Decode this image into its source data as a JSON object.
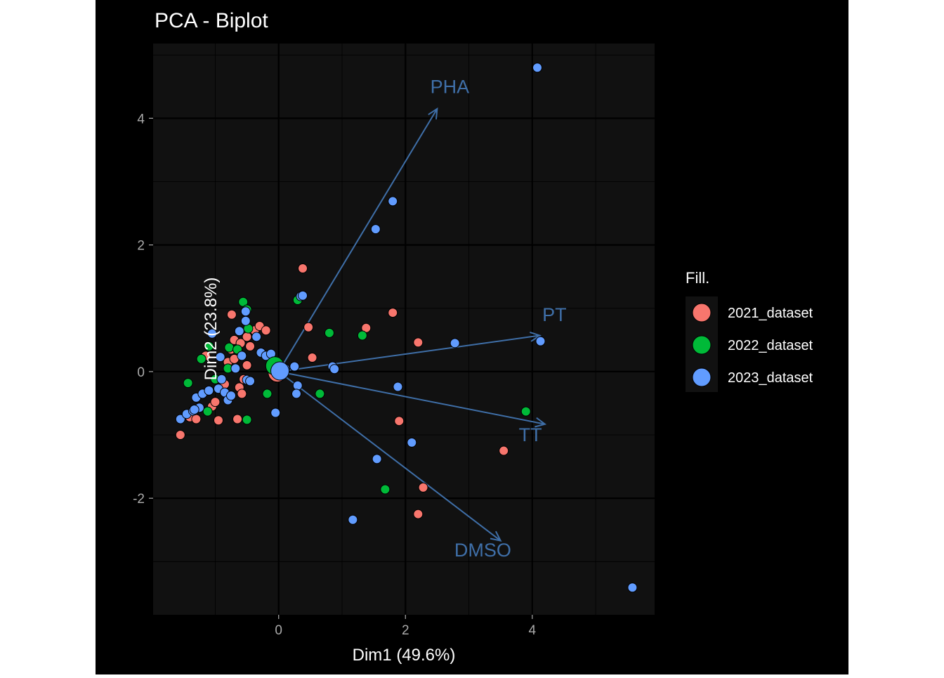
{
  "chart_data": {
    "type": "scatter",
    "title": "PCA - Biplot",
    "xlabel": "Dim1 (49.6%)",
    "ylabel": "Dim2 (23.8%)",
    "xlim": [
      -1.98,
      5.93
    ],
    "ylim": [
      -3.84,
      5.18
    ],
    "x_ticks": [
      0,
      2,
      4
    ],
    "x_tick_labels": [
      "0",
      "2",
      "4"
    ],
    "y_ticks": [
      -2,
      0,
      2,
      4
    ],
    "y_tick_labels": [
      "-2",
      "0",
      "2",
      "4"
    ],
    "grid": true,
    "legend": {
      "title": "Fill.",
      "position": "right"
    },
    "series": [
      {
        "name": "2021_dataset",
        "color": "#F8766D",
        "points": [
          [
            -1.55,
            -1.0
          ],
          [
            -1.4,
            -0.72
          ],
          [
            -1.3,
            -0.75
          ],
          [
            -1.05,
            -0.55
          ],
          [
            -1.0,
            -0.48
          ],
          [
            -0.95,
            -0.77
          ],
          [
            -0.85,
            -0.2
          ],
          [
            -0.8,
            0.15
          ],
          [
            -0.75,
            0.35
          ],
          [
            -0.7,
            0.5
          ],
          [
            -0.62,
            -0.25
          ],
          [
            -0.58,
            -0.35
          ],
          [
            -0.55,
            -0.12
          ],
          [
            -0.7,
            0.2
          ],
          [
            -0.74,
            0.9
          ],
          [
            -0.6,
            0.45
          ],
          [
            -0.5,
            0.55
          ],
          [
            -0.45,
            0.4
          ],
          [
            -0.38,
            0.65
          ],
          [
            -0.3,
            0.72
          ],
          [
            -0.2,
            0.65
          ],
          [
            -0.1,
            0.15
          ],
          [
            -0.05,
            -0.1
          ],
          [
            -0.65,
            -0.75
          ],
          [
            -0.5,
            0.1
          ],
          [
            0.38,
            1.63
          ],
          [
            0.47,
            0.7
          ],
          [
            0.53,
            0.22
          ],
          [
            1.38,
            0.69
          ],
          [
            1.8,
            0.93
          ],
          [
            2.2,
            0.46
          ],
          [
            1.9,
            -0.78
          ],
          [
            2.28,
            -1.83
          ],
          [
            2.2,
            -2.25
          ],
          [
            3.55,
            -1.25
          ],
          [
            -1.15,
            0.25
          ]
        ]
      },
      {
        "name": "2022_dataset",
        "color": "#00BA38",
        "points": [
          [
            -1.43,
            -0.18
          ],
          [
            -1.1,
            0.4
          ],
          [
            -1.22,
            0.2
          ],
          [
            -1.12,
            -0.63
          ],
          [
            -1.0,
            -0.12
          ],
          [
            -0.8,
            0.05
          ],
          [
            -0.78,
            0.38
          ],
          [
            -0.65,
            0.35
          ],
          [
            -0.56,
            1.1
          ],
          [
            -0.5,
            0.98
          ],
          [
            -0.48,
            0.68
          ],
          [
            -0.5,
            -0.76
          ],
          [
            -0.18,
            -0.35
          ],
          [
            0.3,
            1.13
          ],
          [
            0.8,
            0.61
          ],
          [
            1.32,
            0.57
          ],
          [
            0.65,
            -0.35
          ],
          [
            1.68,
            -1.86
          ],
          [
            3.9,
            -0.63
          ],
          [
            -0.05,
            0.1
          ]
        ]
      },
      {
        "name": "2023_dataset",
        "color": "#619CFF",
        "points": [
          [
            -1.55,
            -0.75
          ],
          [
            -1.45,
            -0.67
          ],
          [
            -1.35,
            -0.62
          ],
          [
            -1.3,
            -0.41
          ],
          [
            -1.25,
            -0.57
          ],
          [
            -1.2,
            -0.35
          ],
          [
            -1.1,
            -0.3
          ],
          [
            -1.05,
            0.6
          ],
          [
            -0.95,
            -0.27
          ],
          [
            -0.9,
            -0.12
          ],
          [
            -0.92,
            0.23
          ],
          [
            -0.85,
            -0.33
          ],
          [
            -0.8,
            -0.45
          ],
          [
            -0.75,
            -0.38
          ],
          [
            -0.68,
            0.05
          ],
          [
            -0.58,
            0.25
          ],
          [
            -0.5,
            -0.13
          ],
          [
            -0.45,
            -0.15
          ],
          [
            -0.62,
            0.64
          ],
          [
            -0.52,
            0.8
          ],
          [
            -0.52,
            0.95
          ],
          [
            -0.35,
            0.55
          ],
          [
            -0.28,
            0.3
          ],
          [
            -0.2,
            0.25
          ],
          [
            -0.12,
            0.28
          ],
          [
            -0.05,
            -0.65
          ],
          [
            0.1,
            0.05
          ],
          [
            0.25,
            0.08
          ],
          [
            0.3,
            -0.22
          ],
          [
            0.35,
            1.19
          ],
          [
            0.38,
            1.2
          ],
          [
            0.85,
            0.08
          ],
          [
            0.88,
            0.04
          ],
          [
            1.53,
            2.25
          ],
          [
            1.8,
            2.69
          ],
          [
            2.78,
            0.45
          ],
          [
            4.13,
            0.48
          ],
          [
            1.88,
            -0.24
          ],
          [
            2.1,
            -1.12
          ],
          [
            1.55,
            -1.38
          ],
          [
            1.17,
            -2.34
          ],
          [
            0.28,
            -0.35
          ],
          [
            4.08,
            4.8
          ],
          [
            5.58,
            -3.41
          ],
          [
            -1.33,
            -0.6
          ]
        ]
      }
    ],
    "centroids": [
      {
        "series": "2021_dataset",
        "x": -0.02,
        "y": -0.02
      },
      {
        "series": "2022_dataset",
        "x": -0.06,
        "y": 0.09
      },
      {
        "series": "2023_dataset",
        "x": 0.02,
        "y": 0.01
      }
    ],
    "loadings": [
      {
        "name": "PHA",
        "x": 2.5,
        "y": 4.15,
        "label_x": 2.7,
        "label_y": 4.4
      },
      {
        "name": "PT",
        "x": 4.12,
        "y": 0.57,
        "label_x": 4.35,
        "label_y": 0.8
      },
      {
        "name": "TT",
        "x": 4.2,
        "y": -0.83,
        "label_x": 3.97,
        "label_y": -1.1
      },
      {
        "name": "DMSO",
        "x": 3.5,
        "y": -2.67,
        "label_x": 3.22,
        "label_y": -2.92
      }
    ],
    "loading_color": "#3F6FA8"
  }
}
